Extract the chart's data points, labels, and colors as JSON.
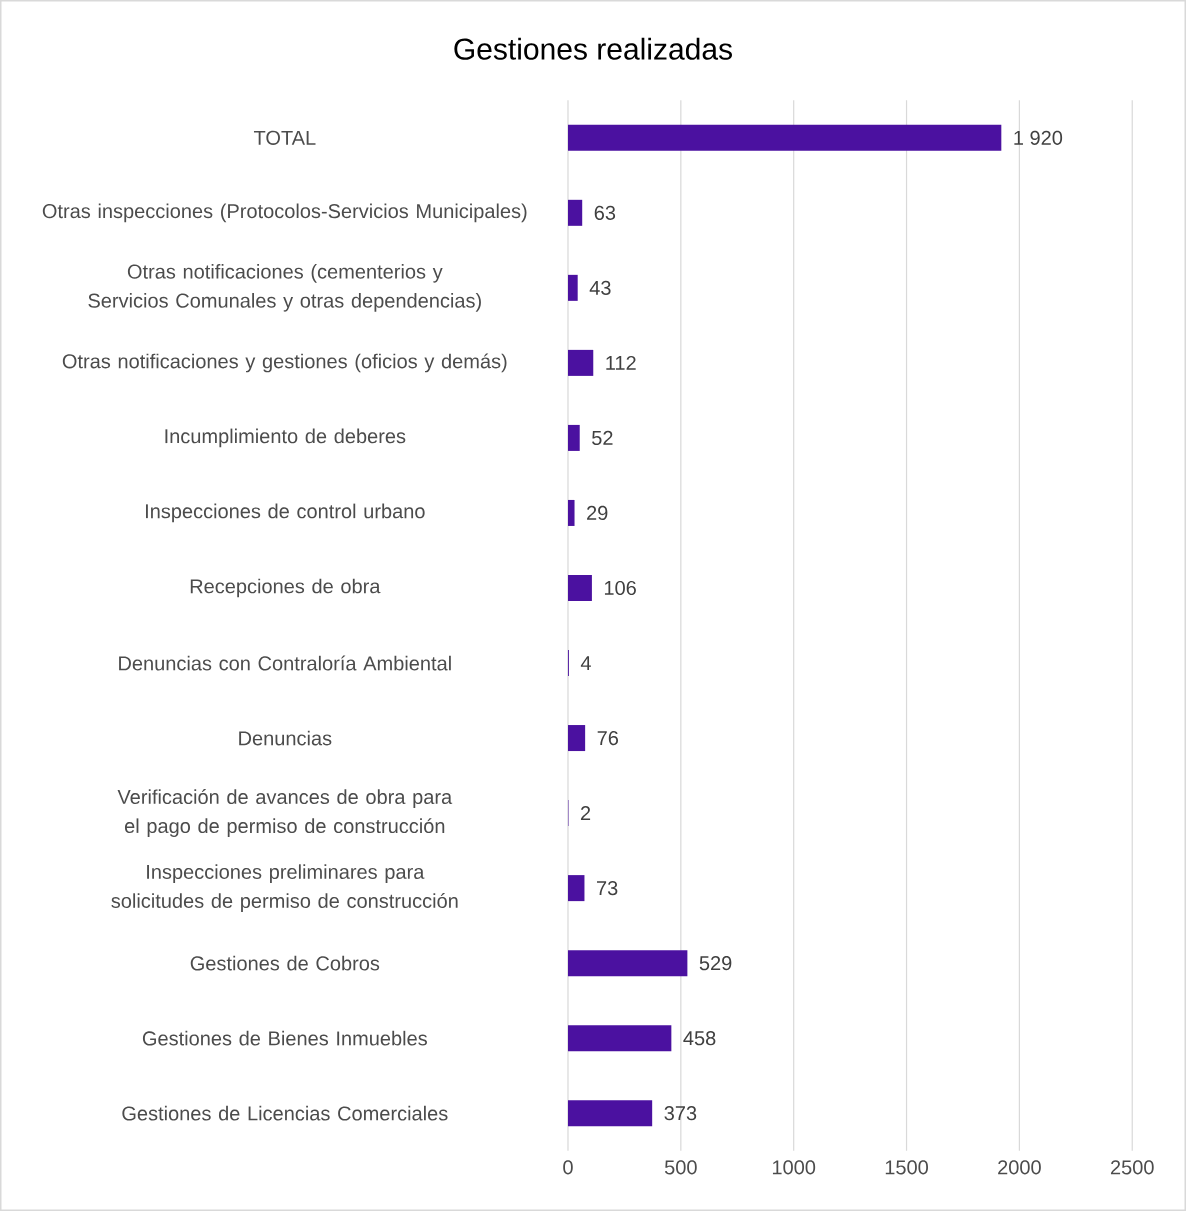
{
  "chart_data": {
    "type": "bar",
    "orientation": "horizontal",
    "title": "Gestiones realizadas",
    "categories": [
      "TOTAL",
      "Otras inspecciones (Protocolos-Servicios Municipales)",
      "Otras notificaciones (cementerios y Servicios Comunales y otras dependencias)",
      "Otras notificaciones y gestiones (oficios y demás)",
      "Incumplimiento de deberes",
      "Inspecciones de control urbano",
      "Recepciones de obra",
      "Denuncias con Contraloría Ambiental",
      "Denuncias",
      "Verificación de avances de obra para el pago de permiso de construcción",
      "Inspecciones preliminares para solicitudes de permiso de construcción",
      "Gestiones de Cobros",
      "Gestiones de Bienes Inmuebles",
      "Gestiones de Licencias Comerciales"
    ],
    "values": [
      1920,
      63,
      43,
      112,
      52,
      29,
      106,
      4,
      76,
      2,
      73,
      529,
      458,
      373
    ],
    "value_labels": [
      "1 920",
      "63",
      "43",
      "112",
      "52",
      "29",
      "106",
      "4",
      "76",
      "2",
      "73",
      "529",
      "458",
      "373"
    ],
    "color": "#4b11a0",
    "xlim": [
      0,
      2500
    ],
    "xticks": [
      0,
      500,
      1000,
      1500,
      2000,
      2500
    ],
    "grid": "x"
  }
}
